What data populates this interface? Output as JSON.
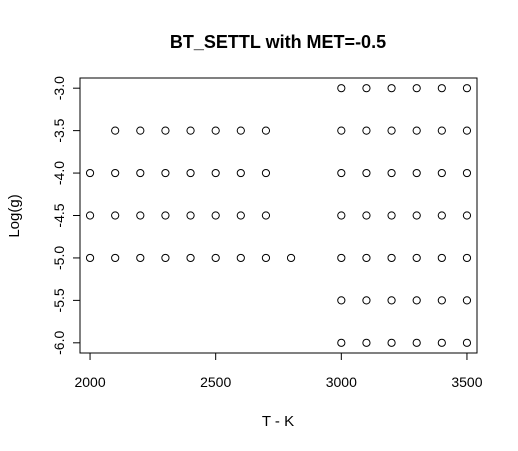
{
  "chart_data": {
    "type": "scatter",
    "title": "BT_SETTL with MET=-0.5",
    "xlabel": "T - K",
    "ylabel": "Log(g)",
    "xlim": [
      1960,
      3540
    ],
    "ylim": [
      -6.12,
      -2.88
    ],
    "y_reversed": true,
    "x_ticks": [
      2000,
      2500,
      3000,
      3500
    ],
    "x_tick_labels": [
      "2000",
      "2500",
      "3000",
      "3500"
    ],
    "y_ticks": [
      -3.0,
      -3.5,
      -4.0,
      -4.5,
      -5.0,
      -5.5,
      -6.0
    ],
    "y_tick_labels": [
      "-3.0",
      "-3.5",
      "-4.0",
      "-4.5",
      "-5.0",
      "-5.5",
      "-6.0"
    ],
    "grid": false,
    "marker": "open-circle",
    "series": [
      {
        "points": [
          [
            2000,
            -4.0
          ],
          [
            2000,
            -4.5
          ],
          [
            2000,
            -5.0
          ],
          [
            2100,
            -3.5
          ],
          [
            2100,
            -4.0
          ],
          [
            2100,
            -4.5
          ],
          [
            2100,
            -5.0
          ],
          [
            2200,
            -3.5
          ],
          [
            2200,
            -4.0
          ],
          [
            2200,
            -4.5
          ],
          [
            2200,
            -5.0
          ],
          [
            2300,
            -3.5
          ],
          [
            2300,
            -4.0
          ],
          [
            2300,
            -4.5
          ],
          [
            2300,
            -5.0
          ],
          [
            2400,
            -3.5
          ],
          [
            2400,
            -4.0
          ],
          [
            2400,
            -4.5
          ],
          [
            2400,
            -5.0
          ],
          [
            2500,
            -3.5
          ],
          [
            2500,
            -4.0
          ],
          [
            2500,
            -4.5
          ],
          [
            2500,
            -5.0
          ],
          [
            2600,
            -3.5
          ],
          [
            2600,
            -4.0
          ],
          [
            2600,
            -4.5
          ],
          [
            2600,
            -5.0
          ],
          [
            2700,
            -3.5
          ],
          [
            2700,
            -4.0
          ],
          [
            2700,
            -4.5
          ],
          [
            2700,
            -5.0
          ],
          [
            2800,
            -5.0
          ],
          [
            3000,
            -3.0
          ],
          [
            3000,
            -3.5
          ],
          [
            3000,
            -4.0
          ],
          [
            3000,
            -4.5
          ],
          [
            3000,
            -5.0
          ],
          [
            3000,
            -5.5
          ],
          [
            3000,
            -6.0
          ],
          [
            3100,
            -3.0
          ],
          [
            3100,
            -3.5
          ],
          [
            3100,
            -4.0
          ],
          [
            3100,
            -4.5
          ],
          [
            3100,
            -5.0
          ],
          [
            3100,
            -5.5
          ],
          [
            3100,
            -6.0
          ],
          [
            3200,
            -3.0
          ],
          [
            3200,
            -3.5
          ],
          [
            3200,
            -4.0
          ],
          [
            3200,
            -4.5
          ],
          [
            3200,
            -5.0
          ],
          [
            3200,
            -5.5
          ],
          [
            3200,
            -6.0
          ],
          [
            3300,
            -3.0
          ],
          [
            3300,
            -3.5
          ],
          [
            3300,
            -4.0
          ],
          [
            3300,
            -4.5
          ],
          [
            3300,
            -5.0
          ],
          [
            3300,
            -5.5
          ],
          [
            3300,
            -6.0
          ],
          [
            3400,
            -3.0
          ],
          [
            3400,
            -3.5
          ],
          [
            3400,
            -4.0
          ],
          [
            3400,
            -4.5
          ],
          [
            3400,
            -5.0
          ],
          [
            3400,
            -5.5
          ],
          [
            3400,
            -6.0
          ],
          [
            3500,
            -3.0
          ],
          [
            3500,
            -3.5
          ],
          [
            3500,
            -4.0
          ],
          [
            3500,
            -4.5
          ],
          [
            3500,
            -5.0
          ],
          [
            3500,
            -5.5
          ],
          [
            3500,
            -6.0
          ]
        ]
      }
    ]
  }
}
